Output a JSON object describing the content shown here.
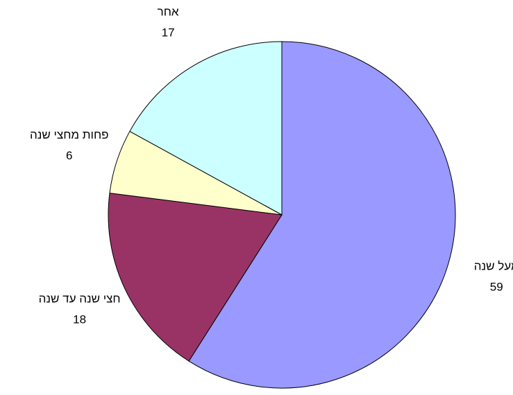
{
  "chart_data": {
    "type": "pie",
    "categories": [
      "מעל שנה",
      "חצי שנה עד שנה",
      "פחות מחצי שנה",
      "אחר"
    ],
    "values": [
      59,
      18,
      6,
      17
    ],
    "colors": [
      "#9999ff",
      "#993366",
      "#ffffcc",
      "#ccffff"
    ]
  }
}
